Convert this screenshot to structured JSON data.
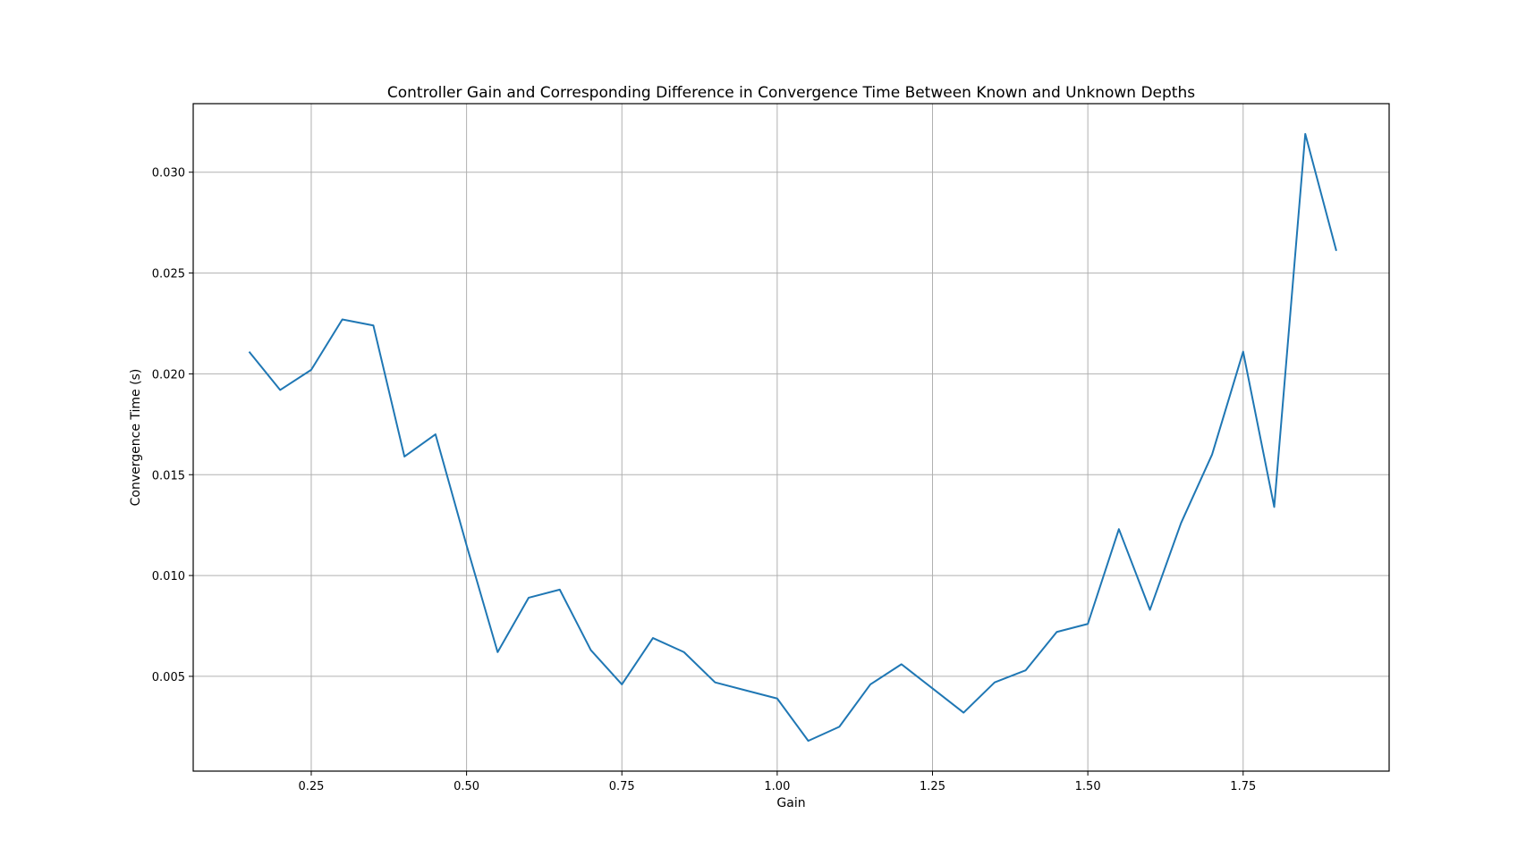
{
  "chart_data": {
    "type": "line",
    "title": "Controller Gain and Corresponding Difference in Convergence Time Between Known and Unknown Depths",
    "xlabel": "Gain",
    "ylabel": "Convergence Time (s)",
    "xlim": [
      0.06,
      1.985
    ],
    "ylim": [
      0.0003,
      0.0334
    ],
    "x_ticks": [
      0.25,
      0.5,
      0.75,
      1.0,
      1.25,
      1.5,
      1.75
    ],
    "x_tick_labels": [
      "0.25",
      "0.50",
      "0.75",
      "1.00",
      "1.25",
      "1.50",
      "1.75"
    ],
    "y_ticks": [
      0.005,
      0.01,
      0.015,
      0.02,
      0.025,
      0.03
    ],
    "y_tick_labels": [
      "0.005",
      "0.010",
      "0.015",
      "0.020",
      "0.025",
      "0.030"
    ],
    "grid": true,
    "line_color": "#1f77b4",
    "x": [
      0.15,
      0.2,
      0.25,
      0.3,
      0.35,
      0.4,
      0.45,
      0.5,
      0.55,
      0.6,
      0.65,
      0.7,
      0.75,
      0.8,
      0.85,
      0.9,
      0.95,
      1.0,
      1.05,
      1.1,
      1.15,
      1.2,
      1.25,
      1.3,
      1.35,
      1.4,
      1.45,
      1.5,
      1.55,
      1.6,
      1.65,
      1.7,
      1.75,
      1.8,
      1.85,
      1.9
    ],
    "series": [
      {
        "values": [
          0.0211,
          0.0192,
          0.0202,
          0.0227,
          0.0224,
          0.0159,
          0.017,
          0.0115,
          0.0062,
          0.0089,
          0.0093,
          0.0063,
          0.0046,
          0.0069,
          0.0062,
          0.0047,
          0.0043,
          0.0039,
          0.0018,
          0.0025,
          0.0046,
          0.0056,
          0.0044,
          0.0032,
          0.0047,
          0.0053,
          0.0072,
          0.0076,
          0.0123,
          0.0083,
          0.0126,
          0.016,
          0.0211,
          0.0134,
          0.0319,
          0.0261
        ]
      }
    ]
  }
}
